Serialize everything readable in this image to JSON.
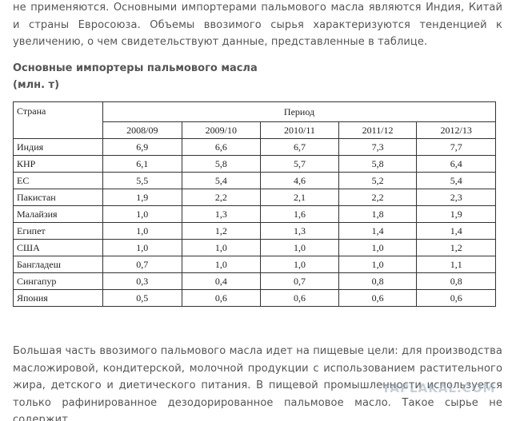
{
  "intro": "не применяются. Основными импортерами пальмового масла являются Индия, Китай и страны Евросоюза. Объемы ввозимого сырья характеризуются тенденцией к увеличению, о чем свидетельствуют данные, представленные в таблице.",
  "heading": {
    "title": "Основные импортеры пальмового масла",
    "unit": "(млн. т)"
  },
  "table": {
    "country_header": "Страна",
    "period_header": "Период",
    "years": [
      "2008/09",
      "2009/10",
      "2010/11",
      "2011/12",
      "2012/13"
    ],
    "rows": [
      [
        "Индия",
        "6,9",
        "6,6",
        "6,7",
        "7,3",
        "7,7"
      ],
      [
        "КНР",
        "6,1",
        "5,8",
        "5,7",
        "5,8",
        "6,4"
      ],
      [
        "ЕС",
        "5,5",
        "5,4",
        "4,6",
        "5,2",
        "5,4"
      ],
      [
        "Пакистан",
        "1,9",
        "2,2",
        "2,1",
        "2,2",
        "2,3"
      ],
      [
        "Малайзия",
        "1,0",
        "1,3",
        "1,6",
        "1,8",
        "1,9"
      ],
      [
        "Египет",
        "1,0",
        "1,2",
        "1,3",
        "1,4",
        "1,4"
      ],
      [
        "США",
        "1,0",
        "1,0",
        "1,0",
        "1,0",
        "1,2"
      ],
      [
        "Бангладеш",
        "0,7",
        "1,0",
        "1,0",
        "1,0",
        "1,1"
      ],
      [
        "Сингапур",
        "0,3",
        "0,4",
        "0,7",
        "0,8",
        "0,8"
      ],
      [
        "Япония",
        "0,5",
        "0,6",
        "0,6",
        "0,6",
        "0,6"
      ]
    ]
  },
  "outro": "Большая часть ввозимого пальмового масла идет на пищевые цели: для производства масложировой, кондитерской, молочной продукции с использованием растительного жира, детского и диетического питания. В пищевой промышленности используется только рафинированное дезодорированное пальмовое масло. Такое сырье не содержит",
  "watermark": "YAPLAKAL.COM"
}
